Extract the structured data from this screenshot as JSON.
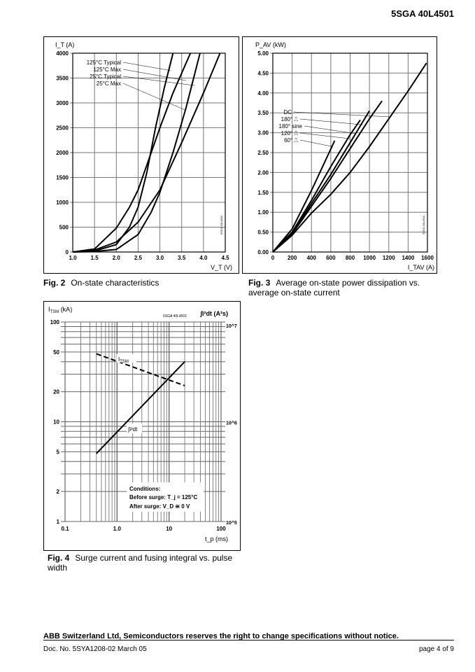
{
  "header": {
    "doc_title": "5SGA 40L4501"
  },
  "chart_data": [
    {
      "id": "fig2",
      "type": "line",
      "figure_label": "Fig. 2",
      "caption": "On-state characteristics",
      "ylabel": "I_T (A)",
      "xlabel": "V_T (V)",
      "xlim": [
        1.0,
        4.5
      ],
      "ylim": [
        0,
        4000
      ],
      "grid": true,
      "xticks": [
        "1.0",
        "1.5",
        "2.0",
        "2.5",
        "3.0",
        "3.5",
        "4.0",
        "4.5"
      ],
      "yticks": [
        "0",
        "500",
        "1000",
        "1500",
        "2000",
        "2500",
        "3000",
        "3500",
        "4000"
      ],
      "watermark": "5SGA 40L4501",
      "series": [
        {
          "name": "125°C  Typical",
          "x": [
            1.0,
            1.5,
            2.0,
            2.3,
            2.5,
            2.7,
            2.9,
            3.1,
            3.3
          ],
          "y": [
            0,
            20,
            150,
            500,
            900,
            1600,
            2500,
            3300,
            4000
          ]
        },
        {
          "name": "125°C  Max",
          "x": [
            1.0,
            1.5,
            2.0,
            2.3,
            2.5,
            2.7,
            3.0,
            3.3,
            3.7
          ],
          "y": [
            0,
            60,
            480,
            900,
            1250,
            1750,
            2500,
            3200,
            4000
          ]
        },
        {
          "name": "25°C  Typical",
          "x": [
            1.0,
            1.5,
            2.0,
            2.5,
            2.8,
            3.0,
            3.3,
            3.6,
            3.92
          ],
          "y": [
            0,
            10,
            50,
            350,
            800,
            1200,
            2000,
            2900,
            4000
          ]
        },
        {
          "name": "25°C  Max",
          "x": [
            1.0,
            1.5,
            2.0,
            2.5,
            3.0,
            3.5,
            4.0,
            4.38
          ],
          "y": [
            0,
            40,
            200,
            600,
            1250,
            2200,
            3200,
            4000
          ]
        }
      ]
    },
    {
      "id": "fig3",
      "type": "line",
      "figure_label": "Fig. 3",
      "caption": "Average on-state power dissipation vs. average on-state current",
      "ylabel": "P_AV (kW)",
      "xlabel": "I_TAV (A)",
      "xlim": [
        0,
        1600
      ],
      "ylim": [
        0,
        5
      ],
      "grid": true,
      "xticks": [
        "0",
        "200",
        "400",
        "600",
        "800",
        "1000",
        "1200",
        "1400",
        "1600"
      ],
      "yticks": [
        "0.00",
        "0.50",
        "1.00",
        "1.50",
        "2.00",
        "2.50",
        "3.00",
        "3.50",
        "4.00",
        "4.50",
        "5.00"
      ],
      "watermark": "5SGA 40L4501",
      "series": [
        {
          "name": "DC",
          "x": [
            0,
            200,
            400,
            600,
            800,
            1000,
            1200,
            1400,
            1590
          ],
          "y": [
            0,
            0.42,
            0.98,
            1.45,
            2.0,
            2.65,
            3.35,
            4.05,
            4.75
          ]
        },
        {
          "name": "180° ⎍",
          "x": [
            0,
            200,
            400,
            600,
            800,
            1000,
            1130
          ],
          "y": [
            0,
            0.45,
            1.15,
            1.85,
            2.6,
            3.35,
            3.8
          ]
        },
        {
          "name": "180° sine",
          "x": [
            0,
            200,
            400,
            600,
            800,
            1000
          ],
          "y": [
            0,
            0.47,
            1.22,
            1.95,
            2.75,
            3.55
          ]
        },
        {
          "name": "120° ⎍",
          "x": [
            0,
            200,
            400,
            600,
            800,
            905
          ],
          "y": [
            0,
            0.5,
            1.3,
            2.15,
            2.95,
            3.32
          ]
        },
        {
          "name": "60° ⎍",
          "x": [
            0,
            200,
            400,
            640
          ],
          "y": [
            0,
            0.58,
            1.55,
            2.8
          ]
        }
      ]
    },
    {
      "id": "fig4",
      "type": "line",
      "figure_label": "Fig. 4",
      "caption": "Surge current and fusing integral vs. pulse width",
      "ylabel": "I_TSM (kA)",
      "y2label": "∫i²dt (A²s)",
      "xlabel": "t_p (ms)",
      "xscale": "log",
      "yscale": "log",
      "xlim": [
        0.1,
        100
      ],
      "ylim": [
        1,
        100
      ],
      "y2lim": [
        100000,
        10000000
      ],
      "grid": true,
      "xticks": [
        "0.1",
        "1.0",
        "10",
        "100"
      ],
      "yticks": [
        "1",
        "2",
        "5",
        "10",
        "20",
        "50",
        "100"
      ],
      "y2ticks": [
        "10^5",
        "10^6",
        "10^7"
      ],
      "watermark": "5SGA 40L4501",
      "series": [
        {
          "name": "I_TSM",
          "style": "dashed",
          "axis": "left",
          "x": [
            0.4,
            20
          ],
          "y": [
            48,
            23
          ]
        },
        {
          "name": "∫i²dt",
          "style": "solid",
          "axis": "right",
          "x": [
            0.4,
            20
          ],
          "y": [
            480000,
            4000000
          ]
        }
      ],
      "annotation": {
        "title": "Conditions:",
        "line1": "Before surge: T_j = 125°C",
        "line2": "After surge:   V_D ≅ 0 V"
      }
    }
  ],
  "footer": {
    "disclaimer": "ABB Switzerland Ltd, Semiconductors reserves the right to change specifications without notice.",
    "doc_no": "Doc. No. 5SYA1208-02 March 05",
    "page": "page 4 of 9"
  }
}
